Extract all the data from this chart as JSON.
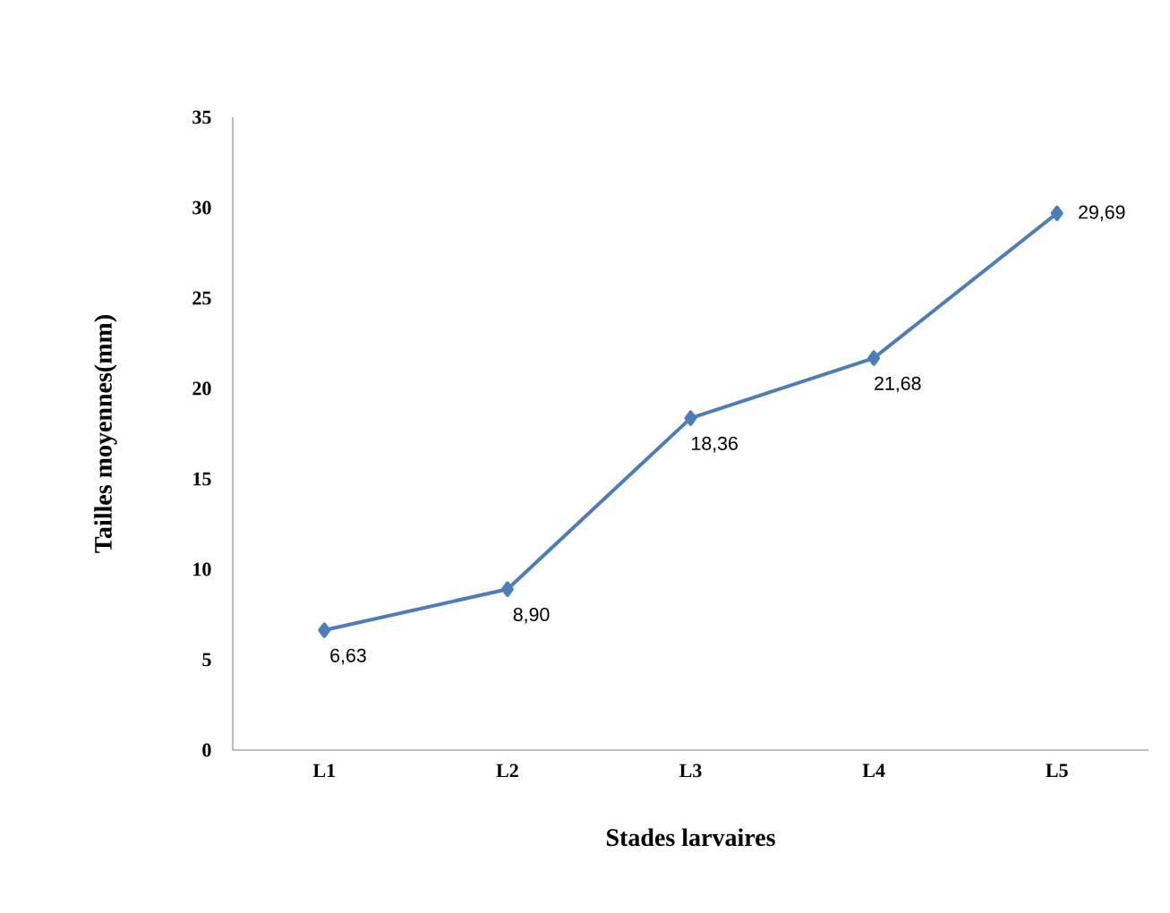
{
  "chart_data": {
    "type": "line",
    "xlabel": "Stades larvaires",
    "ylabel": "Tailles moyennes(mm)",
    "categories": [
      "L1",
      "L2",
      "L3",
      "L4",
      "L5"
    ],
    "series": [
      {
        "color": "#4a7ebb",
        "values": [
          6.63,
          8.9,
          18.36,
          21.68,
          29.69
        ],
        "value_labels": [
          "6,63",
          "8,90",
          "18,36",
          "21,68",
          "29,69"
        ]
      }
    ],
    "ylim": [
      0,
      35
    ],
    "yticks": [
      0,
      5,
      10,
      15,
      20,
      25,
      30,
      35
    ],
    "grid": false,
    "marker": "diamond",
    "line_style": "solid"
  }
}
